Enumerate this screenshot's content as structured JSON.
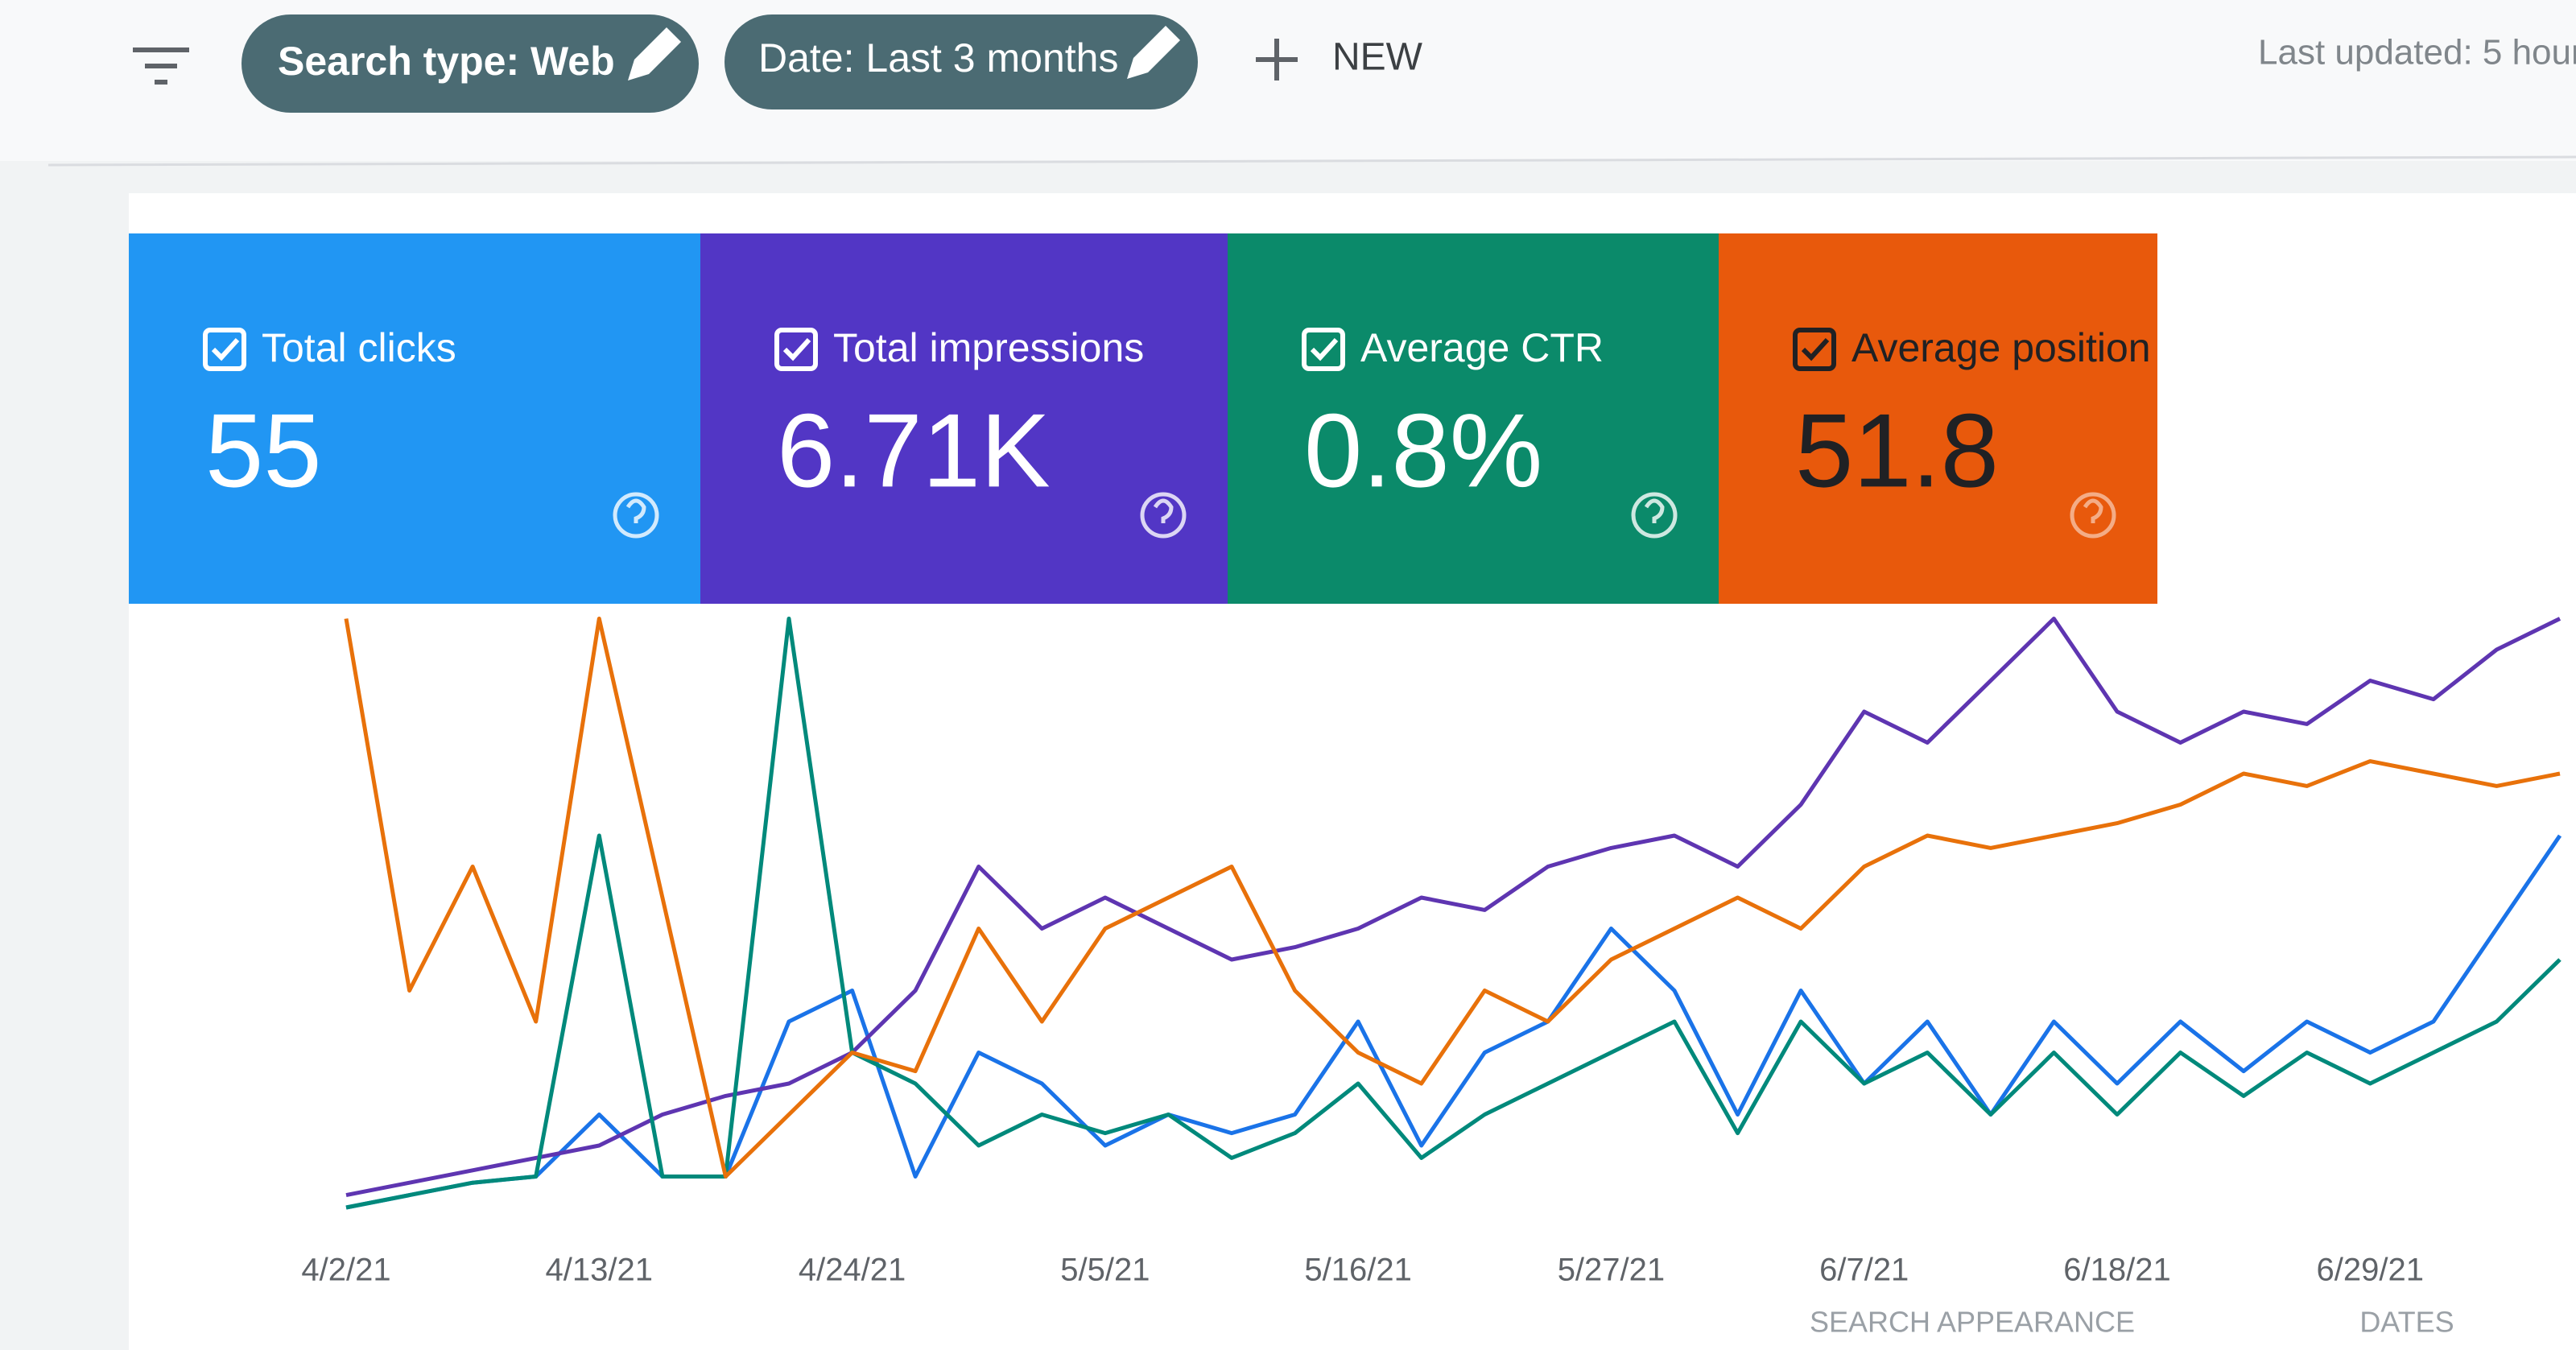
{
  "toolbar": {
    "chips": [
      "Search type: Web",
      "Date: Last 3 months"
    ],
    "new_button": "NEW",
    "last_updated": "Last updated: 5 hour"
  },
  "chart_data": {
    "type": "line",
    "categories": [
      "4/2/21",
      null,
      null,
      null,
      "4/13/21",
      null,
      null,
      null,
      "4/24/21",
      null,
      null,
      null,
      "5/5/21",
      null,
      null,
      null,
      "5/16/21",
      null,
      null,
      null,
      "5/27/21",
      null,
      null,
      null,
      "6/7/21",
      null,
      null,
      null,
      "6/18/21",
      null,
      null,
      null,
      "6/29/21",
      null,
      null,
      null
    ],
    "ylim": [
      0,
      100
    ],
    "series": [
      {
        "name": "Total clicks",
        "total": "55",
        "color": "#1a73e8",
        "card_color": "#2196f3",
        "values": [
          0,
          2,
          4,
          5,
          15,
          5,
          5,
          30,
          35,
          5,
          25,
          20,
          10,
          15,
          12,
          15,
          30,
          10,
          25,
          30,
          45,
          35,
          15,
          35,
          20,
          30,
          15,
          30,
          20,
          30,
          22,
          30,
          25,
          30,
          45,
          60
        ]
      },
      {
        "name": "Total impressions",
        "total": "6.71K",
        "color": "#5e35b1",
        "card_color": "#5236c5",
        "values": [
          2,
          4,
          6,
          8,
          10,
          15,
          18,
          20,
          25,
          35,
          55,
          45,
          50,
          45,
          40,
          42,
          45,
          50,
          48,
          55,
          58,
          60,
          55,
          65,
          80,
          75,
          85,
          95,
          80,
          75,
          80,
          78,
          85,
          82,
          90,
          95
        ]
      },
      {
        "name": "Average CTR",
        "total": "0.8%",
        "color": "#00897b",
        "card_color": "#0b8a6a",
        "values": [
          0,
          2,
          4,
          5,
          60,
          5,
          5,
          95,
          25,
          20,
          10,
          15,
          12,
          15,
          8,
          12,
          20,
          8,
          15,
          20,
          25,
          30,
          12,
          30,
          20,
          25,
          15,
          25,
          15,
          25,
          18,
          25,
          20,
          25,
          30,
          40
        ]
      },
      {
        "name": "Average position",
        "total": "51.8",
        "color": "#e8710a",
        "card_color": "#e8590c",
        "values": [
          95,
          35,
          55,
          30,
          95,
          50,
          5,
          15,
          25,
          22,
          45,
          30,
          45,
          50,
          55,
          35,
          25,
          20,
          35,
          30,
          40,
          45,
          50,
          45,
          55,
          60,
          58,
          60,
          62,
          65,
          70,
          68,
          72,
          70,
          68,
          70
        ]
      }
    ]
  },
  "tabs": [
    "SEARCH APPEARANCE",
    "DATES"
  ]
}
